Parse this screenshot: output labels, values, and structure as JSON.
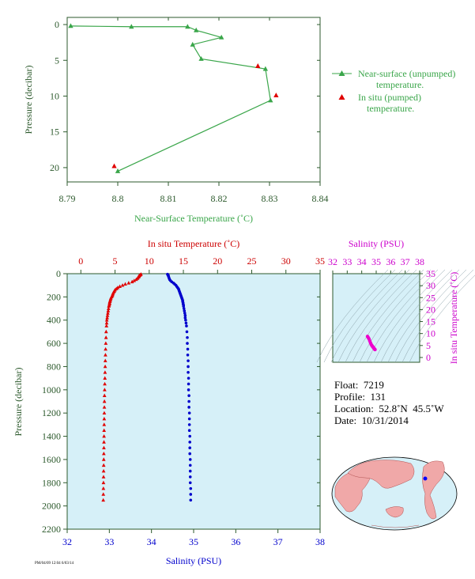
{
  "chart_data": [
    {
      "type": "line",
      "xlabel": "Near-Surface Temperature (˚C)",
      "ylabel": "Pressure (decibar)",
      "xlim": [
        8.79,
        8.84
      ],
      "ylim": [
        22,
        -1
      ],
      "xticks": [
        "8.79",
        "8.8",
        "8.81",
        "8.82",
        "8.83",
        "8.84"
      ],
      "yticks": [
        "0",
        "5",
        "10",
        "15",
        "20"
      ],
      "legend": {
        "placement": "right",
        "entries": [
          {
            "line1": "Near-surface (unpumped)",
            "line2": "temperature.",
            "color": "#3aa64a"
          },
          {
            "line1": "In situ (pumped)",
            "line2": "temperature.",
            "color": "#e00000"
          }
        ]
      },
      "series": [
        {
          "name": "Near-surface (unpumped) temperature.",
          "color": "#3aa64a",
          "x": [
            8.7907,
            8.8027,
            8.8138,
            8.8155,
            8.8205,
            8.8148,
            8.8165,
            8.8292,
            8.8302,
            8.8
          ],
          "y": [
            0.2,
            0.3,
            0.3,
            0.8,
            1.8,
            2.8,
            4.8,
            6.2,
            10.6,
            20.5
          ]
        },
        {
          "name": "In situ (pumped) temperature.",
          "color": "#e00000",
          "x": [
            8.8277,
            8.8313,
            8.7993
          ],
          "y": [
            5.8,
            9.9,
            19.8
          ]
        }
      ]
    },
    {
      "type": "scatter",
      "ylabel": "Pressure (decibar)",
      "xlabel_bottom": "Salinity (PSU)",
      "xlabel_top": "In situ Temperature (˚C)",
      "background": "#d6f0f8",
      "ylim": [
        2200,
        0
      ],
      "yticks": [
        "0",
        "200",
        "400",
        "600",
        "800",
        "1000",
        "1200",
        "1400",
        "1600",
        "1800",
        "2000",
        "2200"
      ],
      "salinity_axis": {
        "lim": [
          32,
          38
        ],
        "ticks": [
          "32",
          "33",
          "34",
          "35",
          "36",
          "37",
          "38"
        ]
      },
      "temperature_axis": {
        "lim": [
          -2,
          35
        ],
        "ticks": [
          "0",
          "5",
          "10",
          "15",
          "20",
          "25",
          "30",
          "35"
        ]
      },
      "series": [
        {
          "name": "In situ Temperature",
          "color": "#e00000",
          "marker": "triangle",
          "pressure": [
            5,
            10,
            15,
            20,
            25,
            30,
            40,
            50,
            60,
            70,
            80,
            90,
            100,
            110,
            120,
            130,
            140,
            150,
            160,
            170,
            180,
            190,
            200,
            210,
            220,
            230,
            240,
            250,
            260,
            270,
            280,
            300,
            320,
            340,
            360,
            380,
            400,
            425,
            450,
            500,
            550,
            600,
            650,
            700,
            750,
            800,
            850,
            900,
            950,
            1000,
            1050,
            1100,
            1150,
            1200,
            1250,
            1300,
            1350,
            1400,
            1450,
            1500,
            1550,
            1600,
            1650,
            1700,
            1750,
            1800,
            1850,
            1900,
            1950
          ],
          "value": [
            8.8,
            8.7,
            8.6,
            8.5,
            8.5,
            8.4,
            8.3,
            8.1,
            7.8,
            7.5,
            7.0,
            6.5,
            6.1,
            5.7,
            5.4,
            5.2,
            5.0,
            4.9,
            4.8,
            4.7,
            4.65,
            4.6,
            4.5,
            4.4,
            4.35,
            4.3,
            4.25,
            4.2,
            4.2,
            4.15,
            4.1,
            4.05,
            4.0,
            3.95,
            3.9,
            3.85,
            3.8,
            3.78,
            3.75,
            3.7,
            3.68,
            3.65,
            3.62,
            3.6,
            3.58,
            3.56,
            3.54,
            3.52,
            3.5,
            3.48,
            3.46,
            3.45,
            3.44,
            3.43,
            3.42,
            3.41,
            3.4,
            3.39,
            3.38,
            3.37,
            3.36,
            3.35,
            3.34,
            3.33,
            3.32,
            3.31,
            3.3,
            3.29,
            3.28
          ]
        },
        {
          "name": "Salinity",
          "color": "#0000cc",
          "marker": "circle",
          "pressure": [
            5,
            10,
            15,
            20,
            30,
            40,
            50,
            60,
            70,
            80,
            90,
            100,
            110,
            120,
            130,
            140,
            150,
            160,
            170,
            180,
            190,
            200,
            210,
            220,
            230,
            240,
            250,
            260,
            270,
            280,
            300,
            320,
            340,
            360,
            380,
            400,
            425,
            450,
            500,
            550,
            600,
            650,
            700,
            750,
            800,
            850,
            900,
            950,
            1000,
            1050,
            1100,
            1150,
            1200,
            1250,
            1300,
            1350,
            1400,
            1450,
            1500,
            1550,
            1600,
            1650,
            1700,
            1750,
            1800,
            1850,
            1900,
            1950
          ],
          "value": [
            34.38,
            34.39,
            34.4,
            34.4,
            34.41,
            34.42,
            34.43,
            34.45,
            34.48,
            34.52,
            34.55,
            34.58,
            34.6,
            34.62,
            34.64,
            34.65,
            34.66,
            34.67,
            34.68,
            34.69,
            34.7,
            34.71,
            34.72,
            34.73,
            34.74,
            34.74,
            34.75,
            34.75,
            34.76,
            34.76,
            34.77,
            34.78,
            34.79,
            34.8,
            34.8,
            34.81,
            34.82,
            34.83,
            34.84,
            34.85,
            34.85,
            34.86,
            34.86,
            34.87,
            34.87,
            34.87,
            34.88,
            34.88,
            34.88,
            34.89,
            34.89,
            34.89,
            34.9,
            34.9,
            34.9,
            34.9,
            34.91,
            34.91,
            34.91,
            34.91,
            34.92,
            34.92,
            34.92,
            34.92,
            34.92,
            34.93,
            34.93,
            34.93
          ]
        }
      ]
    },
    {
      "type": "scatter",
      "title": "Salinity (PSU)",
      "ylabel": "In situ Temperature (˚C)",
      "background": "#d6f0f8",
      "xlim": [
        32,
        38
      ],
      "ylim": [
        -2,
        35
      ],
      "xticks": [
        "32",
        "33",
        "34",
        "35",
        "36",
        "37",
        "38"
      ],
      "yticks": [
        "0",
        "5",
        "10",
        "15",
        "20",
        "25",
        "30",
        "35"
      ],
      "points": {
        "color": "#ee00cc",
        "salinity": [
          34.4,
          34.45,
          34.5,
          34.55,
          34.6,
          34.65,
          34.7,
          34.72,
          34.75,
          34.78,
          34.8,
          34.82,
          34.85,
          34.88,
          34.9,
          34.92
        ],
        "temperature": [
          8.8,
          8.3,
          7.8,
          7.0,
          6.2,
          5.5,
          5.0,
          4.8,
          4.6,
          4.4,
          4.2,
          4.0,
          3.8,
          3.6,
          3.4,
          3.3
        ]
      }
    }
  ],
  "float_info": {
    "float": "Float:  7219",
    "profile": "Profile:  131",
    "location": "Location:  52.8˚N  45.5˚W",
    "date": "Date:  10/31/2014"
  },
  "footer_tag": "PM/04/09 12:04 6/03/14",
  "map": {
    "ocean_color": "#d6f0f8",
    "land_color": "#f0a8a8",
    "marker_color": "#0000ff",
    "location": "52.8˚N 45.5˚W"
  }
}
